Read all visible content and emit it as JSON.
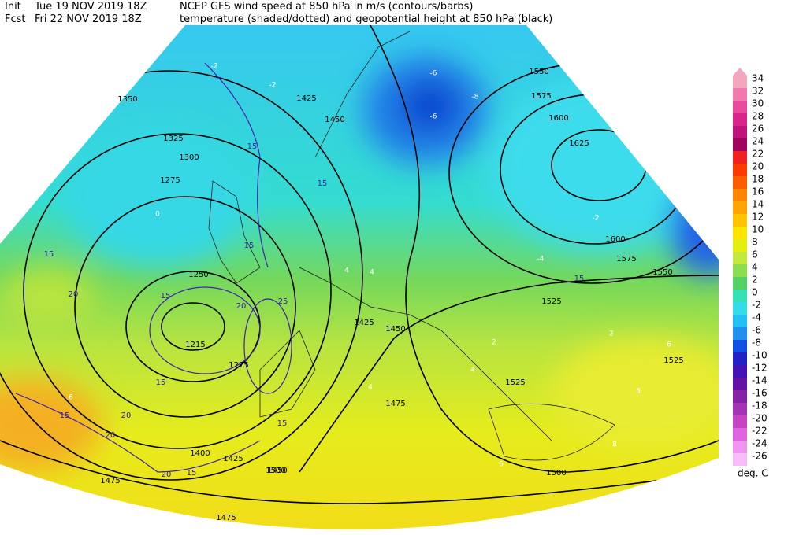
{
  "header": {
    "init_label": "Init",
    "init_time": "Tue 19 NOV 2019 18Z",
    "fcst_label": "Fcst",
    "fcst_time": "Fri 22 NOV 2019 18Z",
    "title_line1": "NCEP GFS wind speed at 850 hPa in m/s (contours/barbs)",
    "title_line2": "temperature (shaded/dotted) and geopotential height at 850 hPa (black)"
  },
  "colorbar": {
    "labels": [
      "34",
      "32",
      "30",
      "28",
      "26",
      "24",
      "22",
      "20",
      "18",
      "16",
      "14",
      "12",
      "10",
      "8",
      "6",
      "4",
      "2",
      "0",
      "-2",
      "-4",
      "-6",
      "-8",
      "-10",
      "-12",
      "-14",
      "-16",
      "-18",
      "-20",
      "-22",
      "-24",
      "-26"
    ],
    "colors": [
      "#f4a6bc",
      "#f07aac",
      "#ea4a9c",
      "#d8248c",
      "#c0127a",
      "#a0045e",
      "#f02020",
      "#ff3a00",
      "#ff5e00",
      "#ff8400",
      "#ffa400",
      "#ffc400",
      "#ffe400",
      "#e4ef10",
      "#c4e83c",
      "#8edc50",
      "#54d064",
      "#34e0b4",
      "#34dce8",
      "#22c0f4",
      "#2090f0",
      "#1050e4",
      "#2222c4",
      "#4412b4",
      "#6212a4",
      "#8424a4",
      "#a434b4",
      "#c444c4",
      "#e064e0",
      "#f094f0",
      "#f8bcf8"
    ],
    "unit": "deg. C"
  },
  "height_labels": [
    "1350",
    "1325",
    "1300",
    "1275",
    "1250",
    "1215",
    "1275",
    "1425",
    "1450",
    "1425",
    "1450",
    "1475",
    "1475",
    "1475",
    "1500",
    "1525",
    "1525",
    "1550",
    "1575",
    "1600",
    "1625",
    "1550",
    "1575",
    "1600",
    "1525",
    "1500",
    "1400",
    "1425",
    "1450"
  ],
  "wind_labels": [
    "15",
    "15",
    "20",
    "15",
    "20",
    "25",
    "15",
    "15",
    "20",
    "15",
    "20",
    "15",
    "15",
    "20",
    "15",
    "15"
  ],
  "temp_labels": [
    "-2",
    "-2",
    "-6",
    "-6",
    "-8",
    "-2",
    "-4",
    "0",
    "4",
    "4",
    "4",
    "6",
    "2",
    "4",
    "6",
    "8",
    "8",
    "6",
    "2"
  ]
}
